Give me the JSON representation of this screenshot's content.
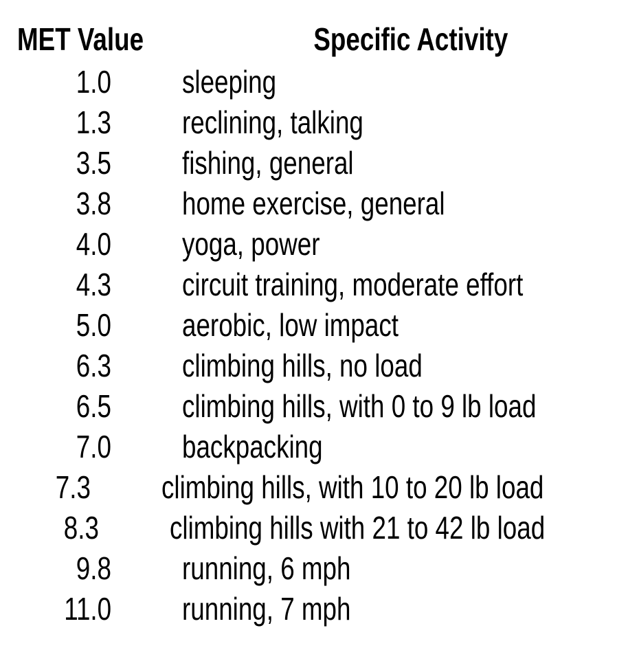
{
  "table": {
    "headers": {
      "met": "MET Value",
      "activity": "Specific Activity"
    },
    "rows": [
      {
        "met": "1.0",
        "activity": "sleeping"
      },
      {
        "met": "1.3",
        "activity": "reclining, talking"
      },
      {
        "met": "3.5",
        "activity": "fishing, general"
      },
      {
        "met": "3.8",
        "activity": "home exercise, general"
      },
      {
        "met": "4.0",
        "activity": "yoga, power"
      },
      {
        "met": "4.3",
        "activity": "circuit training, moderate effort"
      },
      {
        "met": "5.0",
        "activity": "aerobic, low impact"
      },
      {
        "met": "6.3",
        "activity": "climbing hills, no load"
      },
      {
        "met": "6.5",
        "activity": "climbing hills, with 0 to 9 lb load"
      },
      {
        "met": "7.0",
        "activity": "backpacking"
      },
      {
        "met": "7.3",
        "activity": "climbing hills, with 10 to 20 lb load"
      },
      {
        "met": "8.3",
        "activity": "climbing hills with 21 to 42 lb load"
      },
      {
        "met": "9.8",
        "activity": "running, 6 mph"
      },
      {
        "met": "11.0",
        "activity": "running, 7 mph"
      }
    ]
  },
  "chart_data": {
    "type": "table",
    "title": "",
    "columns": [
      "MET Value",
      "Specific Activity"
    ],
    "rows": [
      [
        1.0,
        "sleeping"
      ],
      [
        1.3,
        "reclining, talking"
      ],
      [
        3.5,
        "fishing, general"
      ],
      [
        3.8,
        "home exercise, general"
      ],
      [
        4.0,
        "yoga, power"
      ],
      [
        4.3,
        "circuit training, moderate effort"
      ],
      [
        5.0,
        "aerobic, low impact"
      ],
      [
        6.3,
        "climbing hills, no load"
      ],
      [
        6.5,
        "climbing hills, with 0 to 9 lb load"
      ],
      [
        7.0,
        "backpacking"
      ],
      [
        7.3,
        "climbing hills, with 10 to 20 lb load"
      ],
      [
        8.3,
        "climbing hills with 21 to 42 lb load"
      ],
      [
        9.8,
        "running, 6 mph"
      ],
      [
        11.0,
        "running, 7 mph"
      ]
    ]
  },
  "colors": {
    "text": "#000000",
    "background": "#ffffff"
  }
}
